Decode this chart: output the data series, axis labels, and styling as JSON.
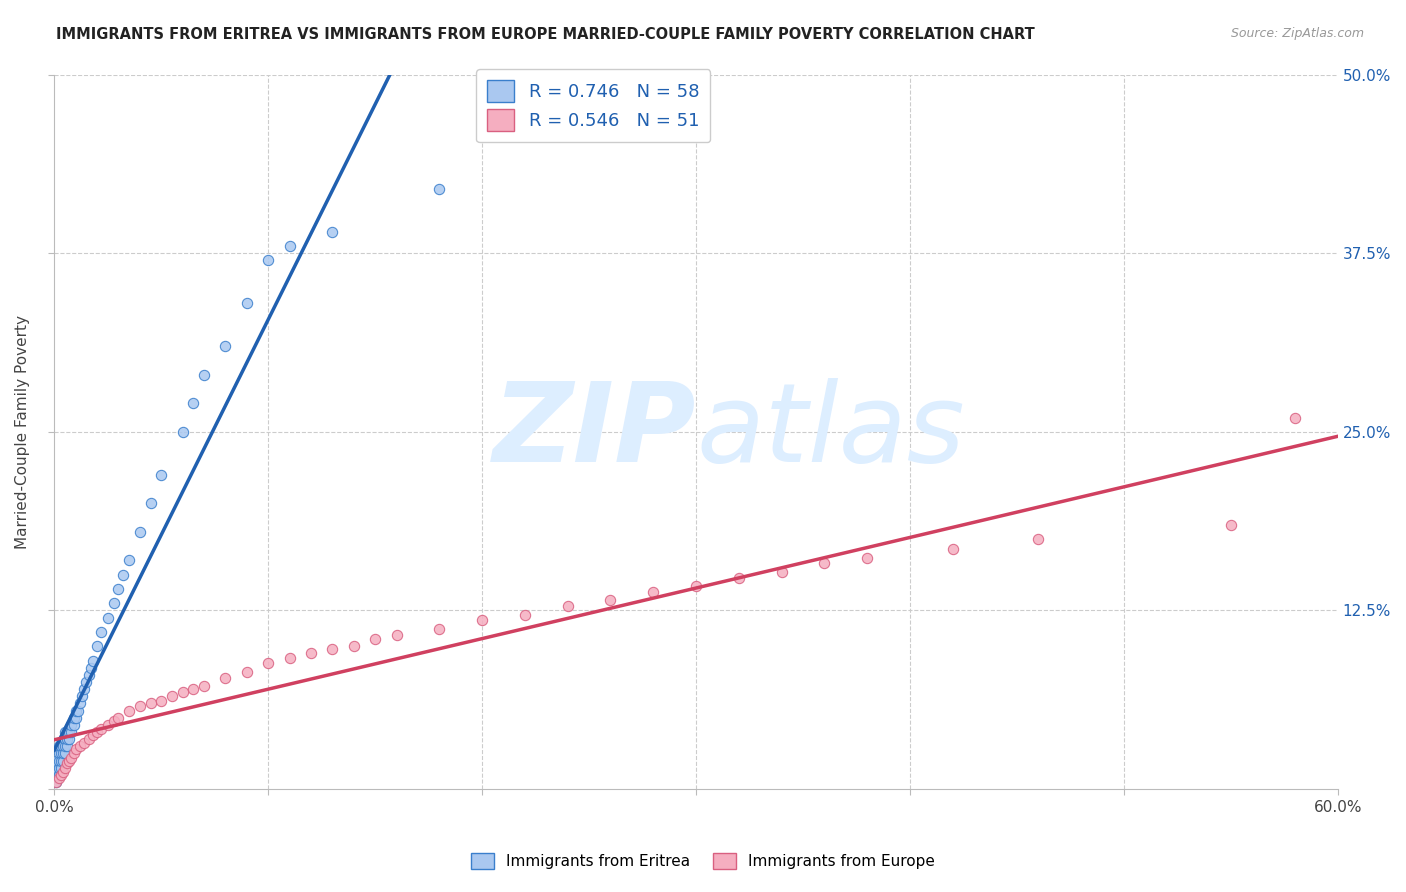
{
  "title": "IMMIGRANTS FROM ERITREA VS IMMIGRANTS FROM EUROPE MARRIED-COUPLE FAMILY POVERTY CORRELATION CHART",
  "source_text": "Source: ZipAtlas.com",
  "ylabel": "Married-Couple Family Poverty",
  "xlim": [
    0,
    0.6
  ],
  "ylim": [
    0,
    0.5
  ],
  "xticks": [
    0.0,
    0.1,
    0.2,
    0.3,
    0.4,
    0.5,
    0.6
  ],
  "yticks": [
    0.0,
    0.125,
    0.25,
    0.375,
    0.5
  ],
  "xticklabels_show": [
    "0.0%",
    "60.0%"
  ],
  "yticklabels_right": [
    "",
    "12.5%",
    "25.0%",
    "37.5%",
    "50.0%"
  ],
  "eritrea_R": 0.746,
  "eritrea_N": 58,
  "europe_R": 0.546,
  "europe_N": 51,
  "eritrea_color": "#aac8f0",
  "europe_color": "#f5aec0",
  "eritrea_edge_color": "#3a7fcc",
  "europe_edge_color": "#d96080",
  "eritrea_line_color": "#2060b0",
  "europe_line_color": "#d04060",
  "eritrea_x": [
    0.001,
    0.001,
    0.001,
    0.001,
    0.002,
    0.002,
    0.002,
    0.002,
    0.002,
    0.003,
    0.003,
    0.003,
    0.003,
    0.004,
    0.004,
    0.004,
    0.005,
    0.005,
    0.005,
    0.005,
    0.006,
    0.006,
    0.006,
    0.007,
    0.007,
    0.008,
    0.008,
    0.009,
    0.009,
    0.01,
    0.01,
    0.011,
    0.012,
    0.013,
    0.014,
    0.015,
    0.016,
    0.017,
    0.018,
    0.02,
    0.022,
    0.025,
    0.028,
    0.03,
    0.032,
    0.035,
    0.04,
    0.045,
    0.05,
    0.06,
    0.065,
    0.07,
    0.08,
    0.09,
    0.1,
    0.11,
    0.13,
    0.18
  ],
  "eritrea_y": [
    0.005,
    0.01,
    0.015,
    0.02,
    0.01,
    0.015,
    0.02,
    0.025,
    0.03,
    0.015,
    0.02,
    0.025,
    0.03,
    0.02,
    0.025,
    0.03,
    0.025,
    0.03,
    0.035,
    0.04,
    0.03,
    0.035,
    0.04,
    0.035,
    0.04,
    0.04,
    0.045,
    0.045,
    0.05,
    0.05,
    0.055,
    0.055,
    0.06,
    0.065,
    0.07,
    0.075,
    0.08,
    0.085,
    0.09,
    0.1,
    0.11,
    0.12,
    0.13,
    0.14,
    0.15,
    0.16,
    0.18,
    0.2,
    0.22,
    0.25,
    0.27,
    0.29,
    0.31,
    0.34,
    0.37,
    0.38,
    0.39,
    0.42
  ],
  "europe_x": [
    0.001,
    0.002,
    0.003,
    0.004,
    0.005,
    0.006,
    0.007,
    0.008,
    0.009,
    0.01,
    0.012,
    0.014,
    0.016,
    0.018,
    0.02,
    0.022,
    0.025,
    0.028,
    0.03,
    0.035,
    0.04,
    0.045,
    0.05,
    0.055,
    0.06,
    0.065,
    0.07,
    0.08,
    0.09,
    0.1,
    0.11,
    0.12,
    0.13,
    0.14,
    0.15,
    0.16,
    0.18,
    0.2,
    0.22,
    0.24,
    0.26,
    0.28,
    0.3,
    0.32,
    0.34,
    0.36,
    0.38,
    0.42,
    0.46,
    0.55,
    0.58
  ],
  "europe_y": [
    0.005,
    0.008,
    0.01,
    0.012,
    0.015,
    0.018,
    0.02,
    0.022,
    0.025,
    0.028,
    0.03,
    0.032,
    0.035,
    0.038,
    0.04,
    0.042,
    0.045,
    0.048,
    0.05,
    0.055,
    0.058,
    0.06,
    0.062,
    0.065,
    0.068,
    0.07,
    0.072,
    0.078,
    0.082,
    0.088,
    0.092,
    0.095,
    0.098,
    0.1,
    0.105,
    0.108,
    0.112,
    0.118,
    0.122,
    0.128,
    0.132,
    0.138,
    0.142,
    0.148,
    0.152,
    0.158,
    0.162,
    0.168,
    0.175,
    0.185,
    0.26
  ],
  "background_color": "#ffffff",
  "grid_color": "#cccccc",
  "watermark_zip": "ZIP",
  "watermark_atlas": "atlas",
  "watermark_color": "#ddeeff"
}
